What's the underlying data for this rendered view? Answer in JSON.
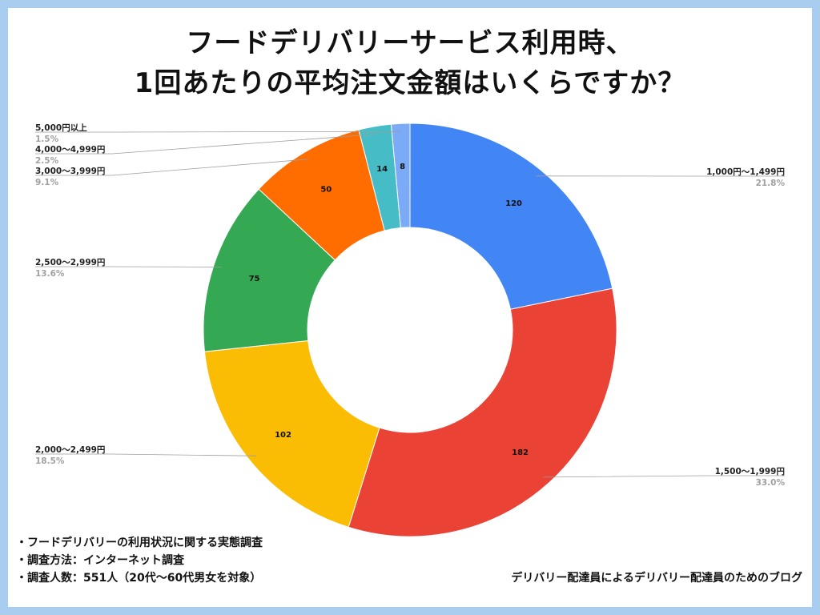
{
  "title_lines": [
    "フードデリバリーサービス利用時、",
    "1回あたりの平均注文金額はいくらですか？"
  ],
  "notes": [
    "・フードデリバリーの利用状況に関する実態調査",
    "・調査方法：インターネット調査",
    "・調査人数：551人（20代〜60代男女を対象）"
  ],
  "credit": "デリバリー配達員によるデリバリー配達員のためのブログ",
  "chart_data": {
    "type": "pie",
    "donut": true,
    "title": "フードデリバリーサービス利用時、1回あたりの平均注文金額はいくらですか？",
    "total": 551,
    "slices": [
      {
        "label": "1,000円〜1,499円",
        "value": 120,
        "percent": "21.8%",
        "color": "#4285f4"
      },
      {
        "label": "1,500〜1,999円",
        "value": 182,
        "percent": "33.0%",
        "color": "#ea4335"
      },
      {
        "label": "2,000〜2,499円",
        "value": 102,
        "percent": "18.5%",
        "color": "#fbbc04"
      },
      {
        "label": "2,500〜2,999円",
        "value": 75,
        "percent": "13.6%",
        "color": "#34a853"
      },
      {
        "label": "3,000〜3,999円",
        "value": 50,
        "percent": "9.1%",
        "color": "#ff6d01"
      },
      {
        "label": "4,000〜4,999円",
        "value": 14,
        "percent": "2.5%",
        "color": "#46bdc6"
      },
      {
        "label": "5,000円以上",
        "value": 8,
        "percent": "1.5%",
        "color": "#7baaf7"
      }
    ]
  }
}
